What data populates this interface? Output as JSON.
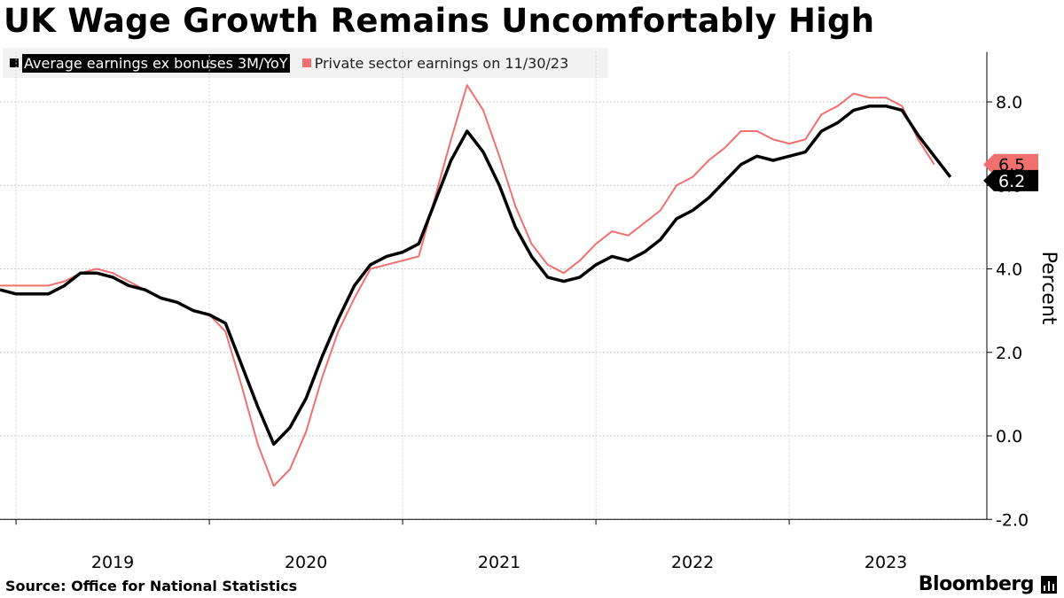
{
  "title": "UK Wage Growth Remains Uncomfortably High",
  "source": "Source: Office for National Statistics",
  "brand": "Bloomberg",
  "chart_data": {
    "type": "line",
    "title": "UK Wage Growth Remains Uncomfortably High",
    "ylabel": "Percent",
    "xlabel": "",
    "ylim": [
      -2.0,
      9.2
    ],
    "yticks": [
      -2.0,
      0.0,
      2.0,
      4.0,
      6.0,
      8.0
    ],
    "ytick_labels": [
      "-2.0",
      "0.0",
      "2.0",
      "4.0",
      "6.0",
      "8.0"
    ],
    "year_labels": [
      "2019",
      "2020",
      "2021",
      "2022",
      "2023"
    ],
    "x_start": 2018.917,
    "x_end": 2023.917,
    "grid": true,
    "legend_position": "top-left",
    "series": [
      {
        "name": "Average earnings ex bonuses 3M/YoY",
        "color": "#000000",
        "start": 2018.917,
        "values": [
          3.5,
          3.4,
          3.4,
          3.4,
          3.6,
          3.9,
          3.9,
          3.8,
          3.6,
          3.5,
          3.3,
          3.2,
          3.0,
          2.9,
          2.7,
          1.7,
          0.7,
          -0.2,
          0.2,
          0.9,
          1.9,
          2.8,
          3.6,
          4.1,
          4.3,
          4.4,
          4.6,
          5.6,
          6.6,
          7.3,
          6.8,
          6.0,
          5.0,
          4.3,
          3.8,
          3.7,
          3.8,
          4.1,
          4.3,
          4.2,
          4.4,
          4.7,
          5.2,
          5.4,
          5.7,
          6.1,
          6.5,
          6.7,
          6.6,
          6.7,
          6.8,
          7.3,
          7.5,
          7.8,
          7.9,
          7.9,
          7.8,
          7.2,
          6.7,
          6.2
        ],
        "end_label": "6.2"
      },
      {
        "name": "Private sector earnings on 11/30/23",
        "color": "#f07070",
        "start": 2018.917,
        "values": [
          3.6,
          3.6,
          3.6,
          3.6,
          3.7,
          3.9,
          4.0,
          3.9,
          3.7,
          3.5,
          3.3,
          3.2,
          3.0,
          2.9,
          2.5,
          1.2,
          -0.2,
          -1.2,
          -0.8,
          0.1,
          1.4,
          2.5,
          3.3,
          4.0,
          4.1,
          4.2,
          4.3,
          5.7,
          7.1,
          8.4,
          7.8,
          6.7,
          5.5,
          4.6,
          4.1,
          3.9,
          4.2,
          4.6,
          4.9,
          4.8,
          5.1,
          5.4,
          6.0,
          6.2,
          6.6,
          6.9,
          7.3,
          7.3,
          7.1,
          7.0,
          7.1,
          7.7,
          7.9,
          8.2,
          8.1,
          8.1,
          7.9,
          7.1,
          6.5
        ],
        "end_label": "6.5"
      }
    ]
  }
}
